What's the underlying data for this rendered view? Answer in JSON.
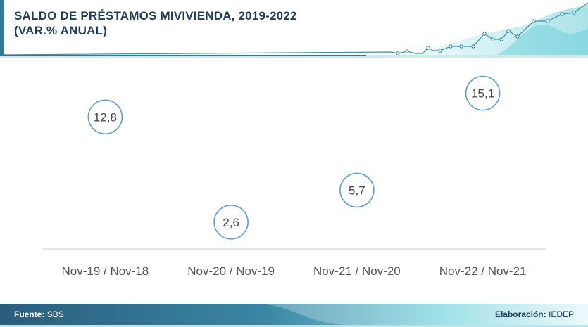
{
  "header": {
    "title_line1": "SALDO DE PRÉSTAMOS MIVIVIENDA, 2019-2022",
    "title_line2": "(VAR.% ANUAL)"
  },
  "chart_data": {
    "type": "scatter",
    "title": "SALDO DE PRÉSTAMOS MIVIVIENDA, 2019-2022 (VAR.% ANUAL)",
    "categories": [
      "Nov-19 / Nov-18",
      "Nov-20 / Nov-19",
      "Nov-21 / Nov-20",
      "Nov-22 / Nov-21"
    ],
    "values": [
      12.8,
      2.6,
      5.7,
      15.1
    ],
    "value_labels": [
      "12,8",
      "2,6",
      "5,7",
      "15,1"
    ],
    "ylim": [
      0,
      18
    ],
    "grid": false,
    "legend": "none",
    "colors": {
      "marker_stroke": "#5b9bd5",
      "axis": "#cccccc",
      "label": "#444444"
    }
  },
  "footer": {
    "source_label": "Fuente:",
    "source_value": "SBS",
    "credit_label": "Elaboración:",
    "credit_value": "IEDEP"
  },
  "colors": {
    "title": "#1f3d58",
    "header_accent": "#2b7a9a",
    "footer_dark": "#2a5d7c",
    "footer_light": "#7fd6e0"
  }
}
